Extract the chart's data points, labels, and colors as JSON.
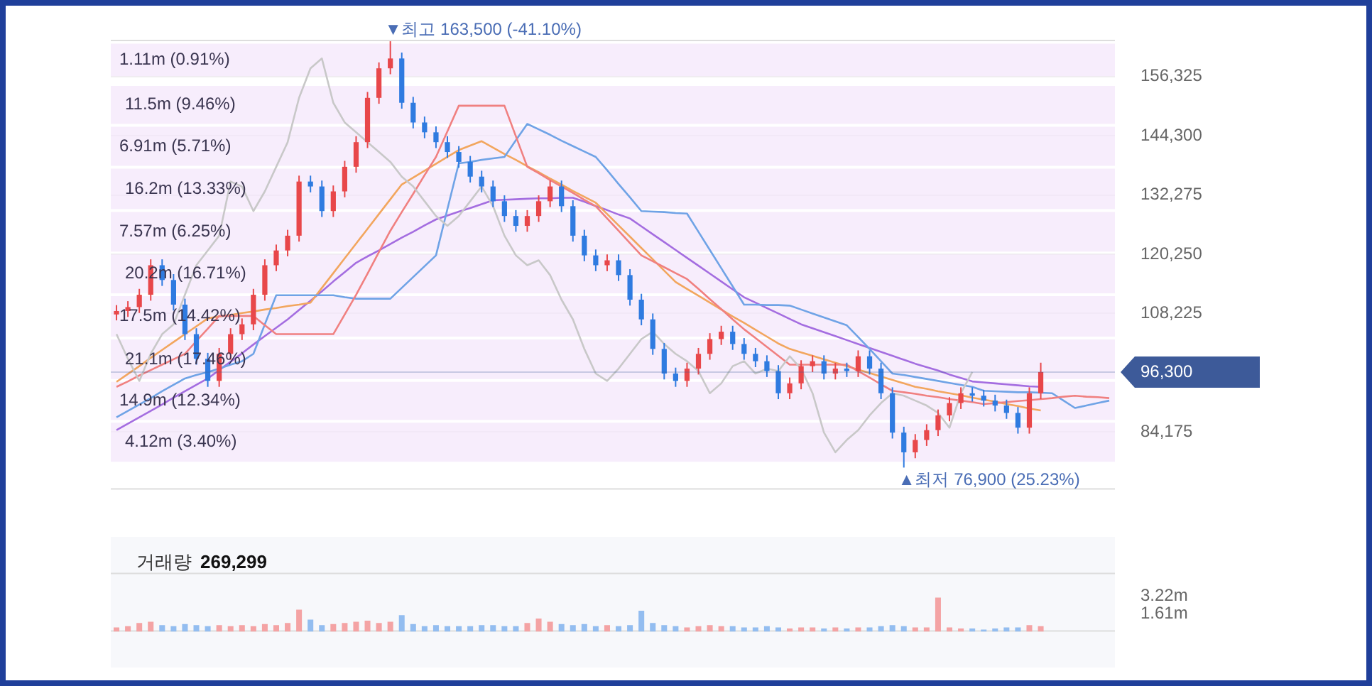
{
  "chart_data": [
    {
      "type": "candlestick",
      "categories": [
        null,
        null,
        null,
        null,
        null,
        null,
        null,
        null,
        null,
        null,
        null,
        null,
        null,
        null,
        null,
        null,
        null,
        null,
        null,
        null,
        null,
        null,
        null,
        null,
        null,
        null,
        null,
        null,
        null,
        null,
        null,
        null,
        null,
        null,
        null,
        null,
        null,
        null,
        null,
        null,
        null,
        null,
        null,
        null,
        null,
        null,
        null,
        null,
        null,
        null,
        null,
        null,
        null,
        null,
        null,
        null,
        null,
        null,
        null,
        null,
        null,
        null,
        null,
        null,
        null,
        null,
        null,
        null,
        null,
        null,
        null,
        null,
        null,
        null,
        null,
        null,
        null,
        null,
        null,
        null,
        null,
        null,
        null,
        null,
        null,
        null,
        null,
        null
      ],
      "ylim": [
        72400,
        163800
      ],
      "yticks": [
        {
          "value": 84175,
          "label": "84,175"
        },
        {
          "value": 108225,
          "label": "108,225"
        },
        {
          "value": 120250,
          "label": "120,250"
        },
        {
          "value": 132275,
          "label": "132,275"
        },
        {
          "value": 144300,
          "label": "144,300"
        },
        {
          "value": 156325,
          "label": "156,325"
        }
      ],
      "grid": "y",
      "series": [
        {
          "type": "line",
          "color": "#c8c8c8",
          "values": [
            104000,
            99000,
            94500,
            100000,
            104000,
            106000,
            112000,
            118000,
            121000,
            124000,
            135000,
            134000,
            129000,
            133000,
            138000,
            143000,
            152000,
            158000,
            160000,
            151000,
            147000,
            145000,
            143000,
            141000,
            139000,
            136000,
            134000,
            131000,
            128000,
            126000,
            128000,
            131000,
            134000,
            130000,
            124000,
            120000,
            118000,
            119000,
            116000,
            111000,
            107000,
            101000,
            96000,
            94500,
            97000,
            100000,
            103000,
            104500,
            102000,
            100000,
            98500,
            96500,
            92000,
            94000,
            97500,
            98500,
            96000,
            97000,
            96500,
            99500,
            97000,
            92000,
            84000,
            80000,
            82500,
            84500,
            87500,
            90000,
            92000,
            91500,
            90500,
            89500,
            88000,
            85000,
            92000,
            96300,
            null,
            null,
            null,
            null,
            null,
            null,
            null,
            null,
            null,
            null,
            null,
            null
          ]
        },
        {
          "type": "line",
          "color": "#f08080",
          "values": [
            93300,
            94400,
            95600,
            96700,
            97800,
            98900,
            100000,
            102600,
            105100,
            107700,
            107700,
            107700,
            107700,
            105800,
            104000,
            104000,
            104000,
            104000,
            104000,
            104000,
            108000,
            112000,
            116300,
            120700,
            125000,
            128800,
            132500,
            136300,
            140000,
            145200,
            150400,
            150400,
            150400,
            150400,
            150400,
            144200,
            138000,
            136700,
            135300,
            134000,
            132700,
            131300,
            130000,
            127500,
            125000,
            122500,
            120000,
            118800,
            117600,
            116400,
            115200,
            113200,
            111100,
            109100,
            107000,
            105000,
            103200,
            101400,
            99600,
            97800,
            97800,
            97800,
            97800,
            97800,
            97800,
            96500,
            95200,
            93800,
            92500,
            92200,
            91900,
            91500,
            91200,
            90800,
            90500,
            90200,
            89800,
            90000,
            90200,
            90400,
            90600,
            90800,
            91000,
            91300,
            91500,
            91300,
            91200,
            91000
          ]
        },
        {
          "type": "line",
          "color": "#6fa3e6",
          "values": [
            87100,
            88400,
            89700,
            91000,
            92400,
            93700,
            95000,
            95700,
            96300,
            97000,
            97800,
            98500,
            100000,
            106000,
            111900,
            111900,
            111900,
            111900,
            111900,
            111900,
            111500,
            111200,
            111200,
            111200,
            111200,
            113400,
            115600,
            117800,
            120000,
            129400,
            138700,
            139000,
            139400,
            139700,
            140000,
            143400,
            146700,
            145600,
            144500,
            143300,
            142200,
            141100,
            140000,
            137300,
            134500,
            131800,
            129000,
            128900,
            128800,
            128600,
            128500,
            124800,
            121100,
            117400,
            113700,
            110000,
            110000,
            109900,
            109900,
            109800,
            109000,
            108200,
            107400,
            106600,
            105800,
            103400,
            101000,
            98500,
            96000,
            95700,
            95300,
            94900,
            94500,
            94100,
            93700,
            93300,
            92500,
            92400,
            92300,
            92200,
            92200,
            92100,
            92000,
            90500,
            89000,
            89500,
            90000,
            90500
          ]
        },
        {
          "type": "line",
          "color": "#f2a65e",
          "values": [
            94300,
            95900,
            97500,
            99200,
            100800,
            102400,
            104000,
            105600,
            107200,
            107600,
            107900,
            108300,
            108600,
            109000,
            109300,
            109700,
            110000,
            110400,
            113400,
            116400,
            119400,
            122400,
            125400,
            128400,
            131400,
            134400,
            135800,
            137200,
            138600,
            140000,
            141400,
            142300,
            143200,
            141900,
            140600,
            139400,
            138100,
            136900,
            135600,
            134400,
            133100,
            131900,
            130700,
            128400,
            126100,
            123800,
            121500,
            119200,
            116900,
            114600,
            113200,
            111800,
            110400,
            109000,
            107600,
            106300,
            104900,
            103500,
            102100,
            101000,
            100300,
            99600,
            98900,
            98200,
            97500,
            96800,
            96100,
            95400,
            94700,
            94000,
            93300,
            92900,
            92400,
            92000,
            91600,
            91100,
            90700,
            90300,
            89800,
            89400,
            88900,
            88500,
            null,
            null,
            null,
            null,
            null,
            null
          ]
        },
        {
          "type": "line",
          "color": "#a46de0",
          "values": [
            84500,
            85800,
            87100,
            88400,
            89700,
            91100,
            92400,
            93700,
            95000,
            96700,
            98400,
            100100,
            101900,
            103600,
            105300,
            107000,
            108900,
            110800,
            112700,
            114700,
            116600,
            118500,
            119800,
            121000,
            122300,
            123600,
            124800,
            126100,
            127300,
            128100,
            128900,
            129600,
            130400,
            131200,
            131300,
            131400,
            131500,
            131600,
            131600,
            131700,
            131700,
            130900,
            130000,
            129200,
            128300,
            127500,
            125900,
            124300,
            122700,
            121100,
            119500,
            117900,
            116300,
            114700,
            113100,
            111500,
            110400,
            109300,
            108200,
            107100,
            106000,
            105200,
            104400,
            103600,
            102800,
            102000,
            101200,
            100400,
            99600,
            98800,
            98000,
            97300,
            96600,
            95800,
            95100,
            94400,
            94200,
            94000,
            93800,
            93600,
            93400,
            93300,
            null,
            null,
            null,
            null,
            null,
            null
          ]
        },
        {
          "type": "candlestick",
          "ohlc": [
            [
              108000,
              109900,
              106800,
              108700
            ],
            [
              108700,
              110700,
              107500,
              109500
            ],
            [
              109500,
              113200,
              108300,
              112000
            ],
            [
              112000,
              119200,
              110800,
              118000
            ],
            [
              118000,
              119200,
              113800,
              115000
            ],
            [
              115000,
              116200,
              108800,
              110000
            ],
            [
              110000,
              111200,
              102800,
              104000
            ],
            [
              104000,
              105200,
              97800,
              99000
            ],
            [
              99000,
              100200,
              93300,
              94500
            ],
            [
              94500,
              101200,
              93300,
              100000
            ],
            [
              100000,
              105200,
              98800,
              104000
            ],
            [
              104000,
              107200,
              102800,
              106000
            ],
            [
              106000,
              113200,
              104800,
              112000
            ],
            [
              112000,
              119200,
              110800,
              118000
            ],
            [
              118000,
              122200,
              116800,
              121000
            ],
            [
              121000,
              125200,
              119800,
              124000
            ],
            [
              124000,
              136200,
              122800,
              135000
            ],
            [
              135000,
              136200,
              132800,
              134000
            ],
            [
              134000,
              135200,
              127800,
              129000
            ],
            [
              129000,
              134200,
              127800,
              133000
            ],
            [
              133000,
              139200,
              131800,
              138000
            ],
            [
              138000,
              144200,
              136800,
              143000
            ],
            [
              143000,
              153200,
              141800,
              152000
            ],
            [
              152000,
              159200,
              150800,
              158000
            ],
            [
              158000,
              163500,
              156800,
              160000
            ],
            [
              160000,
              161200,
              149800,
              151000
            ],
            [
              151000,
              152200,
              145800,
              147000
            ],
            [
              147000,
              148200,
              143800,
              145000
            ],
            [
              145000,
              146200,
              141800,
              143000
            ],
            [
              143000,
              144200,
              139800,
              141000
            ],
            [
              141000,
              142200,
              137800,
              139000
            ],
            [
              139000,
              140200,
              134800,
              136000
            ],
            [
              136000,
              137200,
              132800,
              134000
            ],
            [
              134000,
              135200,
              129800,
              131000
            ],
            [
              131000,
              132200,
              126800,
              128000
            ],
            [
              128000,
              129200,
              124800,
              126000
            ],
            [
              126000,
              129200,
              124800,
              128000
            ],
            [
              128000,
              132200,
              126800,
              131000
            ],
            [
              131000,
              135200,
              129800,
              134000
            ],
            [
              134000,
              135200,
              128800,
              130000
            ],
            [
              130000,
              131200,
              122800,
              124000
            ],
            [
              124000,
              125200,
              118800,
              120000
            ],
            [
              120000,
              121200,
              116800,
              118000
            ],
            [
              118000,
              120200,
              116800,
              119000
            ],
            [
              119000,
              120200,
              114800,
              116000
            ],
            [
              116000,
              117200,
              109800,
              111000
            ],
            [
              111000,
              112200,
              105800,
              107000
            ],
            [
              107000,
              108200,
              99800,
              101000
            ],
            [
              101000,
              102200,
              94800,
              96000
            ],
            [
              96000,
              97200,
              93300,
              94500
            ],
            [
              94500,
              98200,
              93300,
              97000
            ],
            [
              97000,
              101200,
              95800,
              100000
            ],
            [
              100000,
              104200,
              98800,
              103000
            ],
            [
              103000,
              105700,
              101800,
              104500
            ],
            [
              104500,
              105700,
              100800,
              102000
            ],
            [
              102000,
              103200,
              98800,
              100000
            ],
            [
              100000,
              101200,
              97300,
              98500
            ],
            [
              98500,
              99700,
              95300,
              96500
            ],
            [
              96500,
              97700,
              90800,
              92000
            ],
            [
              92000,
              95200,
              90800,
              94000
            ],
            [
              94000,
              98700,
              92800,
              97500
            ],
            [
              97500,
              99700,
              96300,
              98500
            ],
            [
              98500,
              99700,
              94800,
              96000
            ],
            [
              96000,
              98200,
              94800,
              97000
            ],
            [
              97000,
              98200,
              95300,
              96500
            ],
            [
              96500,
              100700,
              95300,
              99500
            ],
            [
              99500,
              100700,
              95800,
              97000
            ],
            [
              97000,
              98200,
              90800,
              92000
            ],
            [
              92000,
              93200,
              82800,
              84000
            ],
            [
              84000,
              85200,
              76900,
              80000
            ],
            [
              80000,
              83700,
              78800,
              82500
            ],
            [
              82500,
              85700,
              81300,
              84500
            ],
            [
              84500,
              88700,
              83300,
              87500
            ],
            [
              87500,
              91200,
              86300,
              90000
            ],
            [
              90000,
              93200,
              88800,
              92000
            ],
            [
              92000,
              93200,
              90300,
              91500
            ],
            [
              91500,
              92700,
              89300,
              90500
            ],
            [
              90500,
              91700,
              88300,
              89500
            ],
            [
              89500,
              90700,
              86800,
              88000
            ],
            [
              88000,
              89200,
              83800,
              85000
            ],
            [
              85000,
              93200,
              83800,
              92000
            ],
            [
              92000,
              98200,
              90800,
              96300
            ],
            null,
            null,
            null,
            null,
            null,
            null
          ],
          "colors": [
            "#e8474a",
            "#e8474a",
            "#e8474a",
            "#e8474a",
            "#2f7be0",
            "#2f7be0",
            "#2f7be0",
            "#2f7be0",
            "#2f7be0",
            "#e8474a",
            "#e8474a",
            "#e8474a",
            "#e8474a",
            "#e8474a",
            "#e8474a",
            "#e8474a",
            "#e8474a",
            "#2f7be0",
            "#2f7be0",
            "#e8474a",
            "#e8474a",
            "#e8474a",
            "#e8474a",
            "#e8474a",
            "#e8474a",
            "#2f7be0",
            "#2f7be0",
            "#2f7be0",
            "#2f7be0",
            "#2f7be0",
            "#2f7be0",
            "#2f7be0",
            "#2f7be0",
            "#2f7be0",
            "#2f7be0",
            "#2f7be0",
            "#e8474a",
            "#e8474a",
            "#e8474a",
            "#2f7be0",
            "#2f7be0",
            "#2f7be0",
            "#2f7be0",
            "#e8474a",
            "#2f7be0",
            "#2f7be0",
            "#2f7be0",
            "#2f7be0",
            "#2f7be0",
            "#2f7be0",
            "#e8474a",
            "#e8474a",
            "#e8474a",
            "#e8474a",
            "#2f7be0",
            "#2f7be0",
            "#2f7be0",
            "#2f7be0",
            "#2f7be0",
            "#e8474a",
            "#e8474a",
            "#e8474a",
            "#2f7be0",
            "#e8474a",
            "#2f7be0",
            "#e8474a",
            "#2f7be0",
            "#2f7be0",
            "#2f7be0",
            "#2f7be0",
            "#e8474a",
            "#e8474a",
            "#e8474a",
            "#e8474a",
            "#e8474a",
            "#2f7be0",
            "#2f7be0",
            "#2f7be0",
            "#2f7be0",
            "#2f7be0",
            "#e8474a",
            "#e8474a",
            null,
            null,
            null,
            null,
            null,
            null
          ]
        }
      ],
      "bands": [
        {
          "axis": "y",
          "from": 156100,
          "to": 163300,
          "label": "1.11m (0.91%)",
          "color": "#f3e6fb"
        },
        {
          "axis": "y",
          "from": 146400,
          "to": 154700,
          "label": "11.5m (9.46%)",
          "color": "#f3e6fb"
        },
        {
          "axis": "y",
          "from": 137900,
          "to": 146400,
          "label": "6.91m (5.71%)",
          "color": "#f3e6fb"
        },
        {
          "axis": "y",
          "from": 129100,
          "to": 137900,
          "label": "16.2m (13.33%)",
          "color": "#f3e6fb"
        },
        {
          "axis": "y",
          "from": 120500,
          "to": 129100,
          "label": "7.57m (6.25%)",
          "color": "#f3e6fb"
        },
        {
          "axis": "y",
          "from": 112000,
          "to": 120500,
          "label": "20.2m (16.71%)",
          "color": "#f3e6fb"
        },
        {
          "axis": "y",
          "from": 103200,
          "to": 112000,
          "label": "17.5m (14.42%)",
          "color": "#f3e6fb"
        },
        {
          "axis": "y",
          "from": 94600,
          "to": 103200,
          "label": "21.1m (17.46%)",
          "color": "#f3e6fb"
        },
        {
          "axis": "y",
          "from": 86300,
          "to": 94600,
          "label": "14.9m (12.34%)",
          "color": "#f3e6fb"
        },
        {
          "axis": "y",
          "from": 77800,
          "to": 86300,
          "label": "4.12m (3.40%)",
          "color": "#f3e6fb"
        }
      ],
      "ref_lines": [
        {
          "axis": "y",
          "value": 96300,
          "label": "96,300",
          "color": "#3d5a99"
        }
      ],
      "annotations": [
        {
          "text": "▼최고 163,500 (-41.10%)",
          "y": 163500
        },
        {
          "text": "▲최저 76,900 (25.23%)",
          "y": 76900
        }
      ]
    },
    {
      "type": "bar",
      "title": "거래량",
      "subtitle": "269,299",
      "categories": [
        null,
        null,
        null,
        null,
        null,
        null,
        null,
        null,
        null,
        null,
        null,
        null,
        null,
        null,
        null,
        null,
        null,
        null,
        null,
        null,
        null,
        null,
        null,
        null,
        null,
        null,
        null,
        null,
        null,
        null,
        null,
        null,
        null,
        null,
        null,
        null,
        null,
        null,
        null,
        null,
        null,
        null,
        null,
        null,
        null,
        null,
        null,
        null,
        null,
        null,
        null,
        null,
        null,
        null,
        null,
        null,
        null,
        null,
        null,
        null,
        null,
        null,
        null,
        null,
        null,
        null,
        null,
        null,
        null,
        null,
        null,
        null,
        null,
        null,
        null,
        null,
        null,
        null,
        null,
        null,
        null,
        null,
        null,
        null,
        null,
        null,
        null,
        null
      ],
      "ylim": [
        0,
        5350000
      ],
      "yticks": [
        {
          "value": 1610000,
          "label": "1.61m"
        },
        {
          "value": 3220000,
          "label": "3.22m"
        }
      ],
      "values": [
        400000,
        500000,
        800000,
        900000,
        600000,
        500000,
        700000,
        600000,
        500000,
        600000,
        500000,
        600000,
        500000,
        700000,
        600000,
        800000,
        2000000,
        1100000,
        600000,
        700000,
        800000,
        900000,
        1000000,
        800000,
        900000,
        1500000,
        700000,
        500000,
        600000,
        500000,
        500000,
        500000,
        600000,
        600000,
        500000,
        500000,
        800000,
        1200000,
        900000,
        700000,
        600000,
        700000,
        500000,
        600000,
        500000,
        600000,
        1900000,
        800000,
        600000,
        500000,
        400000,
        500000,
        600000,
        500000,
        500000,
        400000,
        400000,
        500000,
        400000,
        300000,
        400000,
        400000,
        300000,
        400000,
        300000,
        400000,
        400000,
        500000,
        600000,
        500000,
        400000,
        400000,
        3100000,
        400000,
        300000,
        300000,
        200000,
        300000,
        400000,
        400000,
        600000,
        500000,
        null,
        null,
        null,
        null,
        null,
        null
      ],
      "colors": [
        "#f4a3a4",
        "#f4a3a4",
        "#f4a3a4",
        "#f4a3a4",
        "#93bdf0",
        "#93bdf0",
        "#93bdf0",
        "#93bdf0",
        "#93bdf0",
        "#f4a3a4",
        "#f4a3a4",
        "#f4a3a4",
        "#f4a3a4",
        "#f4a3a4",
        "#f4a3a4",
        "#f4a3a4",
        "#f4a3a4",
        "#93bdf0",
        "#93bdf0",
        "#f4a3a4",
        "#f4a3a4",
        "#f4a3a4",
        "#f4a3a4",
        "#f4a3a4",
        "#f4a3a4",
        "#93bdf0",
        "#93bdf0",
        "#93bdf0",
        "#93bdf0",
        "#93bdf0",
        "#93bdf0",
        "#93bdf0",
        "#93bdf0",
        "#93bdf0",
        "#93bdf0",
        "#93bdf0",
        "#f4a3a4",
        "#f4a3a4",
        "#f4a3a4",
        "#93bdf0",
        "#93bdf0",
        "#93bdf0",
        "#93bdf0",
        "#f4a3a4",
        "#93bdf0",
        "#93bdf0",
        "#93bdf0",
        "#93bdf0",
        "#93bdf0",
        "#93bdf0",
        "#f4a3a4",
        "#f4a3a4",
        "#f4a3a4",
        "#f4a3a4",
        "#93bdf0",
        "#93bdf0",
        "#93bdf0",
        "#93bdf0",
        "#93bdf0",
        "#f4a3a4",
        "#f4a3a4",
        "#f4a3a4",
        "#93bdf0",
        "#f4a3a4",
        "#93bdf0",
        "#f4a3a4",
        "#93bdf0",
        "#93bdf0",
        "#93bdf0",
        "#93bdf0",
        "#f4a3a4",
        "#f4a3a4",
        "#f4a3a4",
        "#f4a3a4",
        "#f4a3a4",
        "#93bdf0",
        "#93bdf0",
        "#93bdf0",
        "#93bdf0",
        "#93bdf0",
        "#f4a3a4",
        "#f4a3a4",
        null,
        null,
        null,
        null,
        null,
        null
      ]
    }
  ]
}
